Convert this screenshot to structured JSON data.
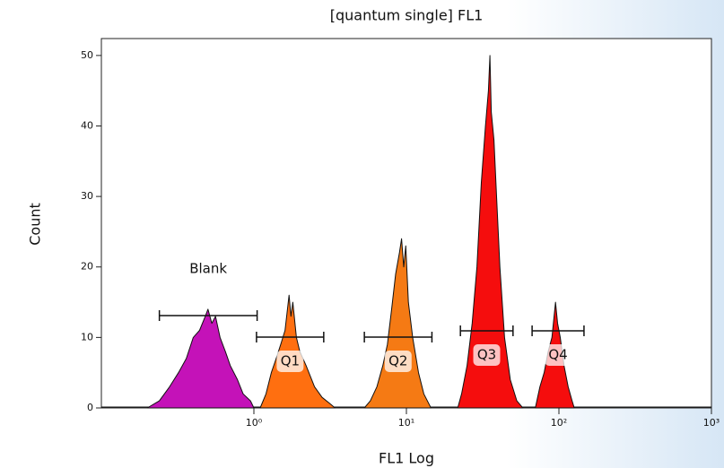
{
  "chart_data": {
    "type": "area",
    "title": "[quantum single] FL1",
    "x_label": "FL1 Log",
    "y_label": "Count",
    "xscale": "log",
    "xlim": [
      0.1,
      1000
    ],
    "xticks": [
      {
        "value": 1,
        "label": "10⁰"
      },
      {
        "value": 10,
        "label": "10¹"
      },
      {
        "value": 100,
        "label": "10²"
      },
      {
        "value": 1000,
        "label": "10³"
      }
    ],
    "ylim": [
      0,
      52.4
    ],
    "yticks": [
      0,
      10,
      20,
      30,
      40,
      50
    ],
    "series": [
      {
        "name": "Blank",
        "color": "#c412b8",
        "gate": [
          0.24,
          1.05
        ],
        "x": [
          0.2,
          0.24,
          0.28,
          0.32,
          0.36,
          0.4,
          0.44,
          0.48,
          0.5,
          0.53,
          0.56,
          0.6,
          0.65,
          0.7,
          0.78,
          0.85,
          0.95,
          1.0
        ],
        "values": [
          0,
          1,
          3,
          5,
          7,
          10,
          11,
          13,
          14,
          12,
          13,
          10,
          8,
          6,
          4,
          2,
          1,
          0
        ]
      },
      {
        "name": "Q1",
        "color": "#ff6f10",
        "gate": [
          1.04,
          2.87
        ],
        "x": [
          1.1,
          1.2,
          1.3,
          1.4,
          1.5,
          1.6,
          1.7,
          1.75,
          1.8,
          1.9,
          2.0,
          2.2,
          2.5,
          2.8,
          3.2,
          3.4
        ],
        "values": [
          0,
          2,
          5,
          7,
          9,
          11,
          16,
          13,
          15,
          10,
          8,
          6,
          3,
          1.5,
          0.5,
          0
        ]
      },
      {
        "name": "Q2",
        "color": "#f57a14",
        "gate": [
          5.3,
          14.7
        ],
        "x": [
          5.3,
          5.8,
          6.4,
          7.0,
          7.5,
          8.0,
          8.5,
          9.0,
          9.3,
          9.6,
          9.9,
          10.3,
          11,
          12,
          13,
          14.5
        ],
        "values": [
          0,
          1,
          3,
          6,
          9,
          14,
          19,
          22,
          24,
          20,
          23,
          15,
          10,
          5,
          2,
          0
        ]
      },
      {
        "name": "Q3",
        "color": "#f50d0d",
        "gate": [
          22.6,
          50
        ],
        "x": [
          21.7,
          23,
          25,
          27,
          29,
          31,
          33,
          34.5,
          35.3,
          36,
          37.5,
          39,
          41,
          44,
          48,
          53,
          58
        ],
        "values": [
          0,
          2,
          6,
          12,
          20,
          32,
          40,
          45,
          50,
          42,
          38,
          30,
          20,
          10,
          4,
          1,
          0
        ]
      },
      {
        "name": "Q4",
        "color": "#f50d0d",
        "gate": [
          66.7,
          146
        ],
        "x": [
          70,
          75,
          80,
          85,
          90,
          95,
          98,
          102,
          108,
          115,
          122,
          126
        ],
        "values": [
          0,
          3,
          5,
          8,
          10,
          15,
          12,
          10,
          6,
          3,
          1,
          0
        ]
      }
    ]
  }
}
